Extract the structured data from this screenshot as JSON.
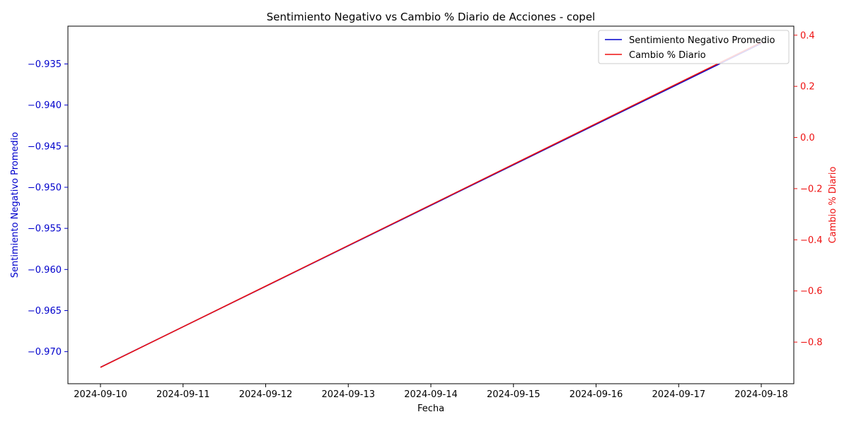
{
  "chart_data": {
    "type": "line",
    "title": "Sentimiento Negativo vs Cambio % Diario de Acciones - copel",
    "xlabel": "Fecha",
    "ylabel_left": "Sentimiento Negativo Promedio",
    "ylabel_right": "Cambio % Diario",
    "x": [
      "2024-09-10",
      "2024-09-18"
    ],
    "x_ticks": [
      "2024-09-10",
      "2024-09-11",
      "2024-09-12",
      "2024-09-13",
      "2024-09-14",
      "2024-09-15",
      "2024-09-16",
      "2024-09-17",
      "2024-09-18"
    ],
    "y_left_ticks": [
      -0.97,
      -0.965,
      -0.96,
      -0.955,
      -0.95,
      -0.945,
      -0.94,
      -0.935
    ],
    "y_left_tick_labels": [
      "−0.970",
      "−0.965",
      "−0.960",
      "−0.955",
      "−0.950",
      "−0.945",
      "−0.940",
      "−0.935"
    ],
    "y_right_ticks": [
      -0.8,
      -0.6,
      -0.4,
      -0.2,
      0.0,
      0.2,
      0.4
    ],
    "y_right_tick_labels": [
      "−0.8",
      "−0.6",
      "−0.4",
      "−0.2",
      "0.0",
      "0.2",
      "0.4"
    ],
    "ylim_left": [
      -0.9739,
      -0.9304
    ],
    "ylim_right": [
      -0.9627,
      0.4353
    ],
    "series": [
      {
        "name": "Sentimiento Negativo Promedio",
        "axis": "left",
        "color": "#0000cc",
        "x": [
          "2024-09-10",
          "2024-09-18"
        ],
        "values": [
          -0.9719,
          -0.9325
        ]
      },
      {
        "name": "Cambio % Diario",
        "axis": "right",
        "color": "#ee1111",
        "x": [
          "2024-09-10",
          "2024-09-18"
        ],
        "values": [
          -0.899,
          0.372
        ]
      }
    ],
    "legend": "top-right",
    "grid": false
  }
}
